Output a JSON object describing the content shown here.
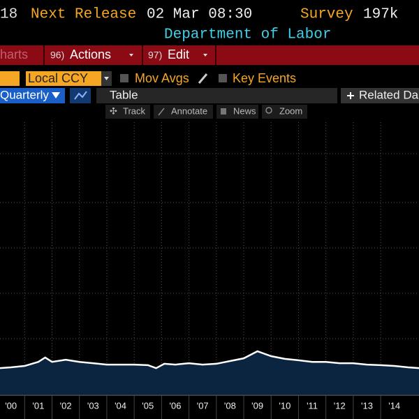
{
  "header": {
    "number_fragment": "18",
    "next_release_label": "Next Release",
    "next_release": "02 Mar 08:30",
    "survey_label": "Survey",
    "survey": "197k",
    "source": "Department of Labor"
  },
  "menu": {
    "charts": "harts",
    "actions_num": "96)",
    "actions": "Actions",
    "edit_num": "97)",
    "edit": "Edit"
  },
  "toolbar": {
    "currency": "Local CCY",
    "mov_avgs": "Mov Avgs",
    "key_events": "Key Events",
    "period": "Quarterly",
    "table": "Table",
    "related": "Related Da",
    "track": "Track",
    "annotate": "Annotate",
    "news": "News",
    "zoom": "Zoom"
  },
  "chart_data": {
    "type": "area",
    "color": "#ffffff",
    "fill": "#0b2440",
    "grid": true,
    "xlim": [
      2000.1,
      2015.4
    ],
    "ylim": [
      0,
      100
    ],
    "xticks": [
      {
        "value": 2000,
        "label": "'00"
      },
      {
        "value": 2001,
        "label": "'01"
      },
      {
        "value": 2002,
        "label": "'02"
      },
      {
        "value": 2003,
        "label": "'03"
      },
      {
        "value": 2004,
        "label": "'04"
      },
      {
        "value": 2005,
        "label": "'05"
      },
      {
        "value": 2006,
        "label": "'06"
      },
      {
        "value": 2007,
        "label": "'07"
      },
      {
        "value": 2008,
        "label": "'08"
      },
      {
        "value": 2009,
        "label": "'09"
      },
      {
        "value": 2010,
        "label": "'10"
      },
      {
        "value": 2011,
        "label": "'11"
      },
      {
        "value": 2012,
        "label": "'12"
      },
      {
        "value": 2013,
        "label": "'13"
      },
      {
        "value": 2014,
        "label": "'14"
      }
    ],
    "x": [
      2000.1,
      2000.5,
      2001.0,
      2001.5,
      2001.75,
      2002.0,
      2002.5,
      2003.0,
      2003.5,
      2004.0,
      2004.5,
      2005.0,
      2005.5,
      2005.8,
      2006.1,
      2006.5,
      2007.0,
      2007.5,
      2008.0,
      2008.5,
      2009.0,
      2009.5,
      2010.0,
      2010.5,
      2011.0,
      2011.5,
      2012.0,
      2012.5,
      2013.0,
      2013.5,
      2014.0,
      2014.5,
      2015.0,
      2015.4
    ],
    "values": [
      9.7,
      10,
      10.5,
      12,
      13.6,
      12,
      12.8,
      12,
      11.5,
      11,
      11,
      11,
      10.8,
      9.7,
      11.3,
      11,
      11.5,
      11,
      11.3,
      12.3,
      13.3,
      15.9,
      14.1,
      13.1,
      12.6,
      12,
      12,
      11.5,
      11.5,
      11,
      10.8,
      10.5,
      10,
      9.7
    ]
  }
}
